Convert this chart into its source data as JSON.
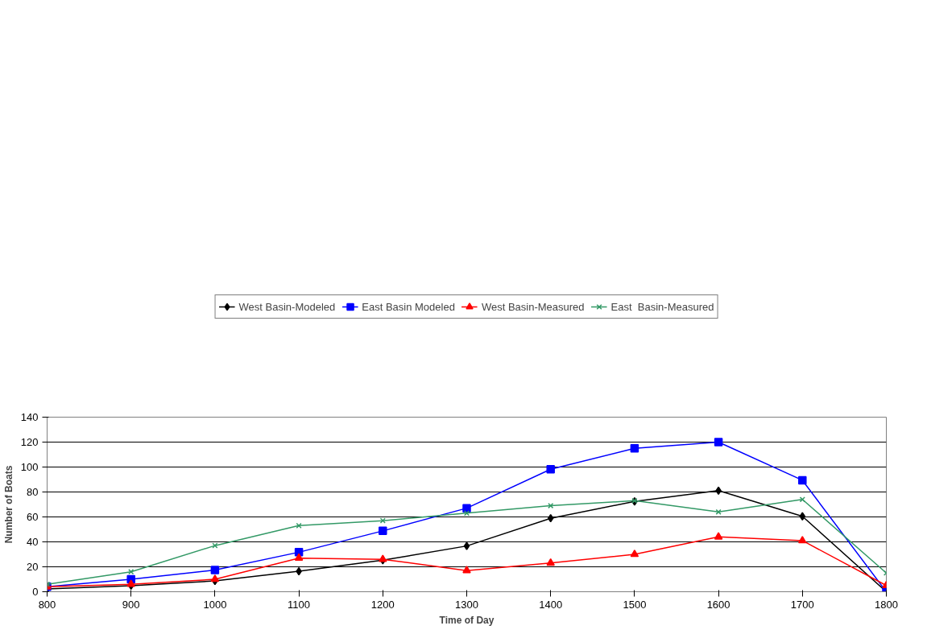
{
  "chart_data": {
    "type": "line",
    "xlabel": "Time of Day",
    "ylabel": "Number of Boats",
    "x": [
      800,
      900,
      1000,
      1100,
      1200,
      1300,
      1400,
      1500,
      1600,
      1700,
      1800
    ],
    "xlim": [
      800,
      1800
    ],
    "xticks": [
      800,
      900,
      1000,
      1100,
      1200,
      1300,
      1400,
      1500,
      1600,
      1700,
      1800
    ],
    "ylim": [
      0,
      140
    ],
    "yticks": [
      0,
      20,
      40,
      60,
      80,
      100,
      120,
      140
    ],
    "grid": "y",
    "legend": "top",
    "series": [
      {
        "name": "West Basin-Modeled",
        "color": "#000000",
        "marker": "diamond",
        "values": [
          2.2,
          4.9,
          8.7,
          16.4,
          25.3,
          36.7,
          58.9,
          72.4,
          81.1,
          60.5,
          0
        ]
      },
      {
        "name": "East Basin Modeled",
        "color": "#0000ff",
        "marker": "square",
        "values": [
          4,
          10,
          17.4,
          31.7,
          48.8,
          67,
          98.2,
          115,
          120,
          89.4,
          0
        ]
      },
      {
        "name": "West Basin-Measured",
        "color": "#ff0000",
        "marker": "triangle",
        "values": [
          4,
          6,
          10,
          27,
          26,
          17,
          23,
          30,
          44,
          41,
          5
        ]
      },
      {
        "name": "East  Basin-Measured",
        "color": "#339966",
        "marker": "cross",
        "values": [
          6,
          16,
          37,
          53,
          57,
          63,
          69,
          73,
          64,
          74,
          15
        ]
      }
    ]
  }
}
